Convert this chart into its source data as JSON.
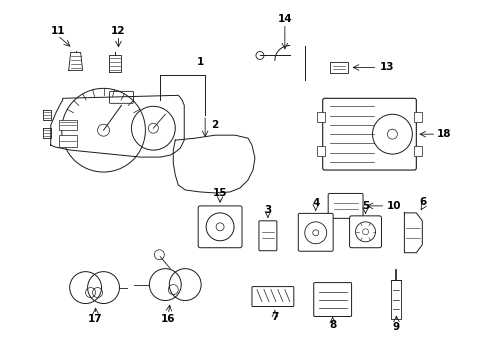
{
  "background_color": "#ffffff",
  "line_color": "#1a1a1a",
  "text_color": "#000000",
  "figsize": [
    4.89,
    3.6
  ],
  "dpi": 100
}
